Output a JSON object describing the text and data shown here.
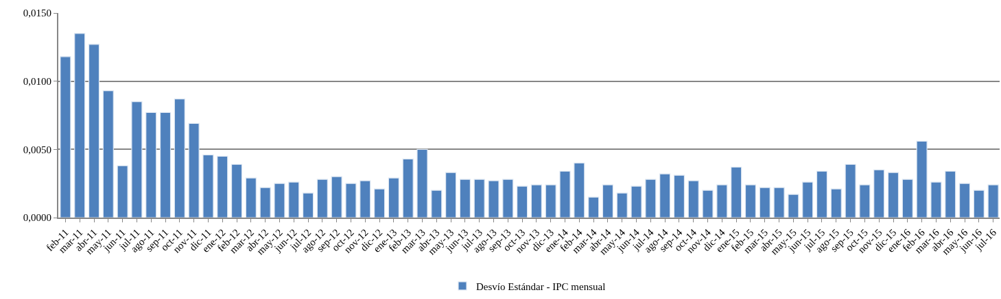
{
  "chart_data": {
    "type": "bar",
    "categories": [
      "feb-11",
      "mar-11",
      "abr-11",
      "may-11",
      "jun-11",
      "jul-11",
      "ago-11",
      "sep-11",
      "oct-11",
      "nov-11",
      "dic-11",
      "ene-12",
      "feb-12",
      "mar-12",
      "abr-12",
      "may-12",
      "jun-12",
      "jul-12",
      "ago-12",
      "sep-12",
      "oct-12",
      "nov-12",
      "dic-12",
      "ene-13",
      "feb-13",
      "mar-13",
      "abr-13",
      "may-13",
      "jun-13",
      "jul-13",
      "ago-13",
      "sep-13",
      "oct-13",
      "nov-13",
      "dic-13",
      "ene-14",
      "feb-14",
      "mar-14",
      "abr-14",
      "may-14",
      "jun-14",
      "jul-14",
      "ago-14",
      "sep-14",
      "oct-14",
      "nov-14",
      "dic-14",
      "ene-15",
      "feb-15",
      "mar-15",
      "abr-15",
      "may-15",
      "jun-15",
      "jul-15",
      "ago-15",
      "sep-15",
      "oct-15",
      "nov-15",
      "dic-15",
      "ene-16",
      "feb-16",
      "mar-16",
      "abr-16",
      "may-16",
      "jun-16",
      "jul-16"
    ],
    "series": [
      {
        "name": "Desvío Estándar - IPC mensual",
        "color": "#4f81bd",
        "values": [
          0.0118,
          0.0135,
          0.0127,
          0.0093,
          0.0038,
          0.0085,
          0.0077,
          0.0077,
          0.0087,
          0.0069,
          0.0046,
          0.0045,
          0.0039,
          0.0029,
          0.0022,
          0.0025,
          0.0026,
          0.0018,
          0.0028,
          0.003,
          0.0025,
          0.0027,
          0.0021,
          0.0029,
          0.0043,
          0.005,
          0.002,
          0.0033,
          0.0028,
          0.0028,
          0.0027,
          0.0028,
          0.0023,
          0.0024,
          0.0024,
          0.0034,
          0.004,
          0.0015,
          0.0024,
          0.0018,
          0.0023,
          0.0028,
          0.0032,
          0.0031,
          0.0027,
          0.002,
          0.0024,
          0.0037,
          0.0024,
          0.0022,
          0.0022,
          0.0017,
          0.0026,
          0.0034,
          0.0021,
          0.0039,
          0.0024,
          0.0035,
          0.0033,
          0.0028,
          0.0056,
          0.0026,
          0.0034,
          0.0025,
          0.002,
          0.0024
        ]
      }
    ],
    "ylim": [
      0,
      0.015
    ],
    "yticks": [
      {
        "value": 0,
        "label": "0,0000"
      },
      {
        "value": 0.005,
        "label": "0,0050"
      },
      {
        "value": 0.01,
        "label": "0,0100"
      },
      {
        "value": 0.015,
        "label": "0,0150"
      }
    ],
    "grid": "y",
    "legend": "bottom"
  }
}
